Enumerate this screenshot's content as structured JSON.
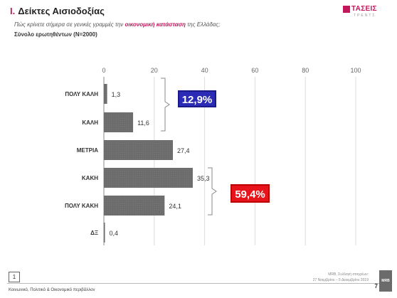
{
  "header": {
    "section": "I.",
    "title": "Δείκτες Αισιοδοξίας",
    "question_pre": "Πώς κρίνετε σήμερα σε γενικές γραμμές την ",
    "question_highlight": "οικονομική κατάσταση",
    "question_post": " της Ελλάδας;",
    "base": "Σύνολο ερωτηθέντων (N=2000)"
  },
  "logo": {
    "name": "ΤΑΣΕΙΣ",
    "tagline": "ΤΡΕΝΤΣ"
  },
  "chart_data": {
    "type": "bar",
    "orientation": "horizontal",
    "categories": [
      "ΠΟΛΥ ΚΑΛΗ",
      "ΚΑΛΗ",
      "ΜΕΤΡΙΑ",
      "ΚΑΚΗ",
      "ΠΟΛΥ ΚΑΚΗ",
      "ΔΞ"
    ],
    "values": [
      1.3,
      11.6,
      27.4,
      35.3,
      24.1,
      0.4
    ],
    "value_labels": [
      "1,3",
      "11,6",
      "27,4",
      "35,3",
      "24,1",
      "0,4"
    ],
    "xticks": [
      0,
      20,
      40,
      60,
      80,
      100
    ],
    "xlim": [
      0,
      100
    ],
    "grid": true,
    "bar_color": "#6b6b6b",
    "annotations": [
      {
        "label": "12,9%",
        "groups": [
          "ΠΟΛΥ ΚΑΛΗ",
          "ΚΑΛΗ"
        ],
        "color": "#2b2bb5"
      },
      {
        "label": "59,4%",
        "groups": [
          "ΚΑΚΗ",
          "ΠΟΛΥ ΚΑΚΗ"
        ],
        "color": "#e8141c"
      }
    ]
  },
  "footer": {
    "page_box": "1",
    "section_text": "Κοινωνικό, Πολιτικό & Οικονομικό περιβάλλον",
    "source_line1": "MRB, Συλλογή στοιχείων:",
    "source_line2": "27 Νοεμβρίου – 5 Δεκεμβρίου 2019",
    "page_number": "7",
    "brand": "MRB"
  }
}
